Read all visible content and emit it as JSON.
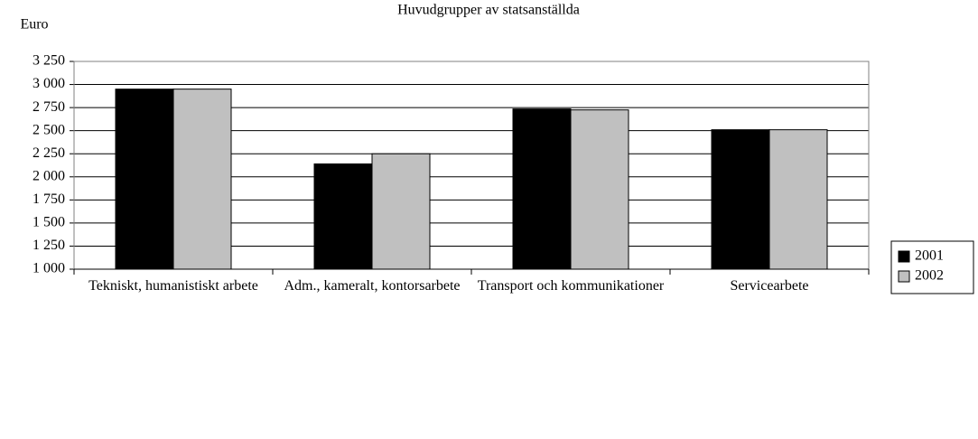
{
  "chart_data": {
    "type": "bar",
    "title": "Huvudgrupper av statsanställda",
    "y_label": "Euro",
    "categories": [
      "Tekniskt, humanistiskt arbete",
      "Adm., kameralt, kontorsarbete",
      "Transport och kommunikationer",
      "Servicearbete"
    ],
    "series": [
      {
        "name": "2001",
        "color": "#000000",
        "values": [
          2950,
          2140,
          2735,
          2510
        ]
      },
      {
        "name": "2002",
        "color": "#c0c0c0",
        "values": [
          2950,
          2250,
          2725,
          2510
        ]
      }
    ],
    "ylim": [
      1000,
      3250
    ],
    "yticks": [
      {
        "value": 1000,
        "label": "1 000"
      },
      {
        "value": 1250,
        "label": "1 250"
      },
      {
        "value": 1500,
        "label": "1 500"
      },
      {
        "value": 1750,
        "label": "1 750"
      },
      {
        "value": 2000,
        "label": "2 000"
      },
      {
        "value": 2250,
        "label": "2 250"
      },
      {
        "value": 2500,
        "label": "2 500"
      },
      {
        "value": 2750,
        "label": "2 750"
      },
      {
        "value": 3000,
        "label": "3 000"
      },
      {
        "value": 3250,
        "label": "3 250"
      }
    ],
    "grid": true,
    "legend": "right"
  }
}
